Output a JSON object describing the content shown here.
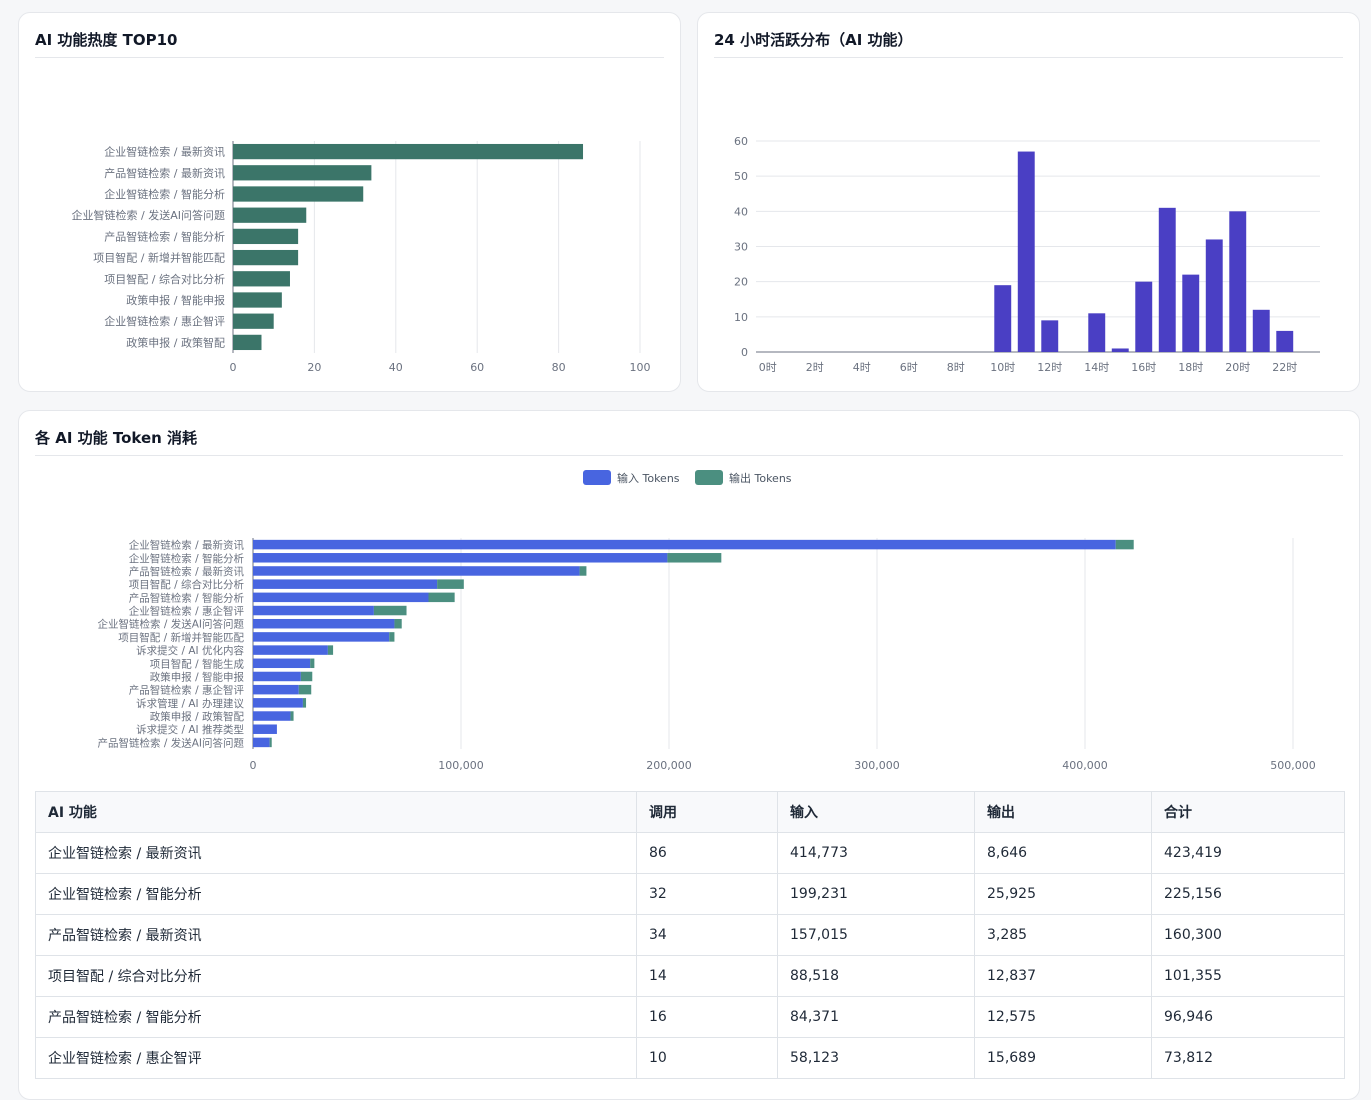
{
  "panels": {
    "top10_title": "AI 功能热度 TOP10",
    "hourly_title": "24 小时活跃分布（AI 功能）",
    "token_title": "各 AI 功能 Token 消耗"
  },
  "chart_data": [
    {
      "type": "bar",
      "orientation": "horizontal",
      "title": "AI 功能热度 TOP10",
      "categories": [
        "企业智链检索 / 最新资讯",
        "产品智链检索 / 最新资讯",
        "企业智链检索 / 智能分析",
        "企业智链检索 / 发送AI问答问题",
        "产品智链检索 / 智能分析",
        "项目智配 / 新增并智能匹配",
        "项目智配 / 综合对比分析",
        "政策申报 / 智能申报",
        "企业智链检索 / 惠企智评",
        "政策申报 / 政策智配"
      ],
      "values": [
        86,
        34,
        32,
        18,
        16,
        16,
        14,
        12,
        10,
        7
      ],
      "xlim": [
        0,
        100
      ],
      "xticks": [
        0,
        20,
        40,
        60,
        80,
        100
      ],
      "grid": true,
      "color": "#3b7569"
    },
    {
      "type": "bar",
      "title": "24 小时活跃分布（AI 功能）",
      "categories": [
        "0时",
        "1时",
        "2时",
        "3时",
        "4时",
        "5时",
        "6时",
        "7时",
        "8时",
        "9时",
        "10时",
        "11时",
        "12时",
        "13时",
        "14时",
        "15时",
        "16时",
        "17时",
        "18时",
        "19时",
        "20时",
        "21时",
        "22时",
        "23时"
      ],
      "xtick_labels": [
        "0时",
        "2时",
        "4时",
        "6时",
        "8时",
        "10时",
        "12时",
        "14时",
        "16时",
        "18时",
        "20时",
        "22时"
      ],
      "values": [
        0,
        0,
        0,
        0,
        0,
        0,
        0,
        0,
        0,
        0,
        19,
        57,
        9,
        0,
        11,
        1,
        20,
        41,
        22,
        32,
        40,
        12,
        6,
        0
      ],
      "ylim": [
        0,
        60
      ],
      "yticks": [
        0,
        10,
        20,
        30,
        40,
        50,
        60
      ],
      "grid": true,
      "color": "#4a3fc4"
    },
    {
      "type": "bar",
      "orientation": "horizontal",
      "stacked": true,
      "title": "各 AI 功能 Token 消耗",
      "legend_position": "top-center",
      "categories": [
        "企业智链检索 / 最新资讯",
        "企业智链检索 / 智能分析",
        "产品智链检索 / 最新资讯",
        "项目智配 / 综合对比分析",
        "产品智链检索 / 智能分析",
        "企业智链检索 / 惠企智评",
        "企业智链检索 / 发送AI问答问题",
        "项目智配 / 新增并智能匹配",
        "诉求提交 / AI 优化内容",
        "项目智配 / 智能生成",
        "政策申报 / 智能申报",
        "产品智链检索 / 惠企智评",
        "诉求管理 / AI 办理建议",
        "政策申报 / 政策智配",
        "诉求提交 / AI 推荐类型",
        "产品智链检索 / 发送AI问答问题"
      ],
      "series": [
        {
          "name": "输入 Tokens",
          "color": "#4865e0",
          "values": [
            414773,
            199231,
            157015,
            88518,
            84371,
            58123,
            68000,
            65500,
            36000,
            27500,
            23000,
            22000,
            24000,
            18000,
            11500,
            8000
          ]
        },
        {
          "name": "输出 Tokens",
          "color": "#4b8f80",
          "values": [
            8646,
            25925,
            3285,
            12837,
            12575,
            15689,
            3500,
            2500,
            2500,
            2000,
            5500,
            6000,
            1500,
            1500,
            0,
            1000
          ]
        }
      ],
      "xlim": [
        0,
        500000
      ],
      "xticks": [
        0,
        100000,
        200000,
        300000,
        400000,
        500000
      ],
      "xtick_labels": [
        "0",
        "100,000",
        "200,000",
        "300,000",
        "400,000",
        "500,000"
      ],
      "grid": true
    }
  ],
  "table": {
    "headers": [
      "AI 功能",
      "调用",
      "输入",
      "输出",
      "合计"
    ],
    "rows": [
      [
        "企业智链检索 / 最新资讯",
        "86",
        "414,773",
        "8,646",
        "423,419"
      ],
      [
        "企业智链检索 / 智能分析",
        "32",
        "199,231",
        "25,925",
        "225,156"
      ],
      [
        "产品智链检索 / 最新资讯",
        "34",
        "157,015",
        "3,285",
        "160,300"
      ],
      [
        "项目智配 / 综合对比分析",
        "14",
        "88,518",
        "12,837",
        "101,355"
      ],
      [
        "产品智链检索 / 智能分析",
        "16",
        "84,371",
        "12,575",
        "96,946"
      ],
      [
        "企业智链检索 / 惠企智评",
        "10",
        "58,123",
        "15,689",
        "73,812"
      ]
    ]
  }
}
